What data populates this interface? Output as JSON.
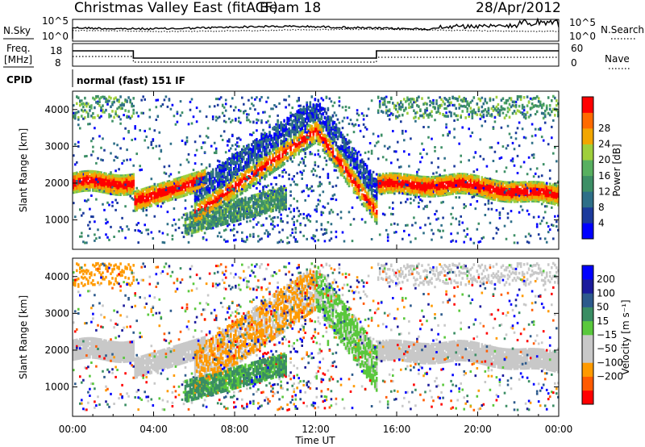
{
  "header": {
    "station": "Christmas Valley East (fitACF)",
    "beam": "Beam 18",
    "date": "28/Apr/2012"
  },
  "labels": {
    "nsky": "N.Sky",
    "nsearch": "N.Search",
    "freq_line1": "Freq.",
    "freq_line2": "[MHz]",
    "nave": "Nave",
    "cpid": "CPID",
    "cpid_value": "normal (fast) 151 IF"
  },
  "colors": {
    "power": [
      "#0000ff",
      "#1b3a9c",
      "#2e6f88",
      "#3d8f66",
      "#58b060",
      "#9fcf3b",
      "#f2a600",
      "#ff6a00",
      "#ff0000"
    ],
    "velocity": [
      "#ff0000",
      "#ff5a00",
      "#ff9a00",
      "#c8c8c8",
      "#c8c8c8",
      "#59c83c",
      "#3a8d63",
      "#2d5a8c",
      "#1b1b9c",
      "#0000ff"
    ],
    "ground_scatter": "#c8c8c8"
  },
  "chart_data": [
    {
      "type": "line",
      "name": "noise-panel",
      "left_label": "N.Sky",
      "right_label": "N.Search",
      "left_ticks": [
        "10^5",
        "10^0"
      ],
      "right_ticks": [
        "10^5",
        "10^0"
      ],
      "x_range": [
        "00:00",
        "24:00"
      ]
    },
    {
      "type": "line",
      "name": "frequency-panel",
      "left_label": "Freq. [MHz]",
      "right_label": "Nave",
      "left_ticks": [
        "18",
        "8"
      ],
      "right_ticks": [
        "60",
        "0"
      ],
      "freq_steps": [
        {
          "from": "00:00",
          "to": "03:00",
          "level": "high"
        },
        {
          "from": "03:00",
          "to": "15:00",
          "level": "mid"
        },
        {
          "from": "15:00",
          "to": "24:00",
          "level": "high"
        }
      ]
    },
    {
      "type": "heatmap",
      "name": "power-panel",
      "ylabel": "Slant Range [km]",
      "yticks": [
        1000,
        2000,
        3000,
        4000
      ],
      "ylim": [
        200,
        4500
      ],
      "colorbar_label": "Power [dB]",
      "colorbar_ticks": [
        "4",
        "8",
        "12",
        "16",
        "20",
        "24",
        "28"
      ]
    },
    {
      "type": "heatmap",
      "name": "velocity-panel",
      "ylabel": "Slant Range [km]",
      "yticks": [
        1000,
        2000,
        3000,
        4000
      ],
      "ylim": [
        200,
        4500
      ],
      "colorbar_label": "Velocity [m s⁻¹]",
      "colorbar_ticks": [
        "200",
        "100",
        "50",
        "15",
        "−15",
        "−50",
        "−100",
        "−200"
      ]
    }
  ],
  "xaxis": {
    "ticks": [
      "00:00",
      "04:00",
      "08:00",
      "12:00",
      "16:00",
      "20:00",
      "00:00"
    ],
    "label": "Time UT"
  }
}
